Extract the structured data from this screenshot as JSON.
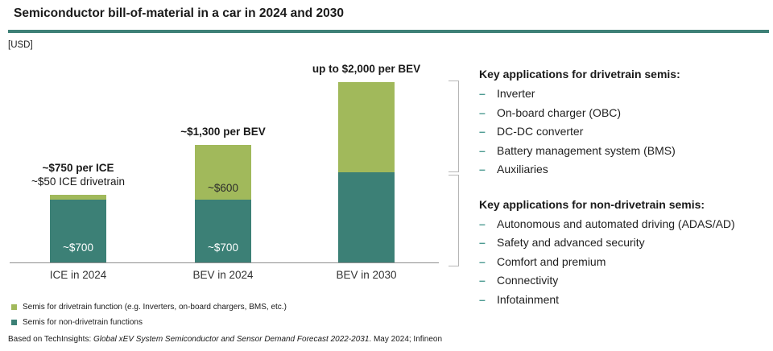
{
  "title": "Semiconductor bill-of-material in a car in 2024 and 2030",
  "unit_label": "[USD]",
  "colors": {
    "drivetrain_green": "#A1B95B",
    "non_drivetrain_teal": "#3C8076",
    "title_rule": "#3E8077",
    "bullet_dash": "#4D9B92",
    "bracket_gray": "#B6B6B6",
    "axis_line": "#8F8F8F"
  },
  "chart_data": {
    "type": "bar",
    "stacked": true,
    "unit": "USD",
    "title": "Semiconductor bill-of-material in a car in 2024 and 2030",
    "categories": [
      "ICE in 2024",
      "BEV in 2024",
      "BEV in 2030"
    ],
    "series": [
      {
        "name": "Semis for non-drivetrain functions",
        "color": "#3C8076",
        "values": [
          700,
          700,
          1000
        ],
        "value_labels": [
          "~$700",
          "~$700",
          ""
        ],
        "label_color": "#ffffff"
      },
      {
        "name": "Semis for drivetrain function (e.g. Inverters, on-board chargers, BMS, etc.)",
        "color": "#A1B95B",
        "values": [
          50,
          600,
          1000
        ],
        "value_labels": [
          "",
          "~$600",
          ""
        ],
        "label_color": "#2b2b2b"
      }
    ],
    "totals": [
      {
        "label": "~$750 per ICE",
        "sublabel": "~$50 ICE drivetrain"
      },
      {
        "label": "~$1,300 per BEV",
        "sublabel": ""
      },
      {
        "label": "up to $2,000 per BEV",
        "sublabel": ""
      }
    ],
    "ylim": [
      0,
      2000
    ],
    "grid": false,
    "legend_position": "bottom-left"
  },
  "right_panel": {
    "bullet_char": "–",
    "sections": [
      {
        "heading": "Key applications for drivetrain semis:",
        "items": [
          "Inverter",
          "On-board charger (OBC)",
          "DC-DC converter",
          "Battery management system (BMS)",
          "Auxiliaries"
        ]
      },
      {
        "heading": "Key applications for non-drivetrain semis:",
        "items": [
          "Autonomous and automated driving (ADAS/AD)",
          "Safety and advanced security",
          "Comfort and premium",
          "Connectivity",
          "Infotainment"
        ]
      }
    ]
  },
  "legend": [
    {
      "label": "Semis for drivetrain function (e.g. Inverters, on-board chargers, BMS, etc.)",
      "color": "#A1B95B"
    },
    {
      "label": "Semis for non-drivetrain functions",
      "color": "#3C8076"
    }
  ],
  "source": {
    "prefix": "Based on TechInsights: ",
    "italic": "Global xEV System Semiconductor and Sensor Demand Forecast 2022-2031",
    "suffix": ". May 2024; Infineon"
  }
}
